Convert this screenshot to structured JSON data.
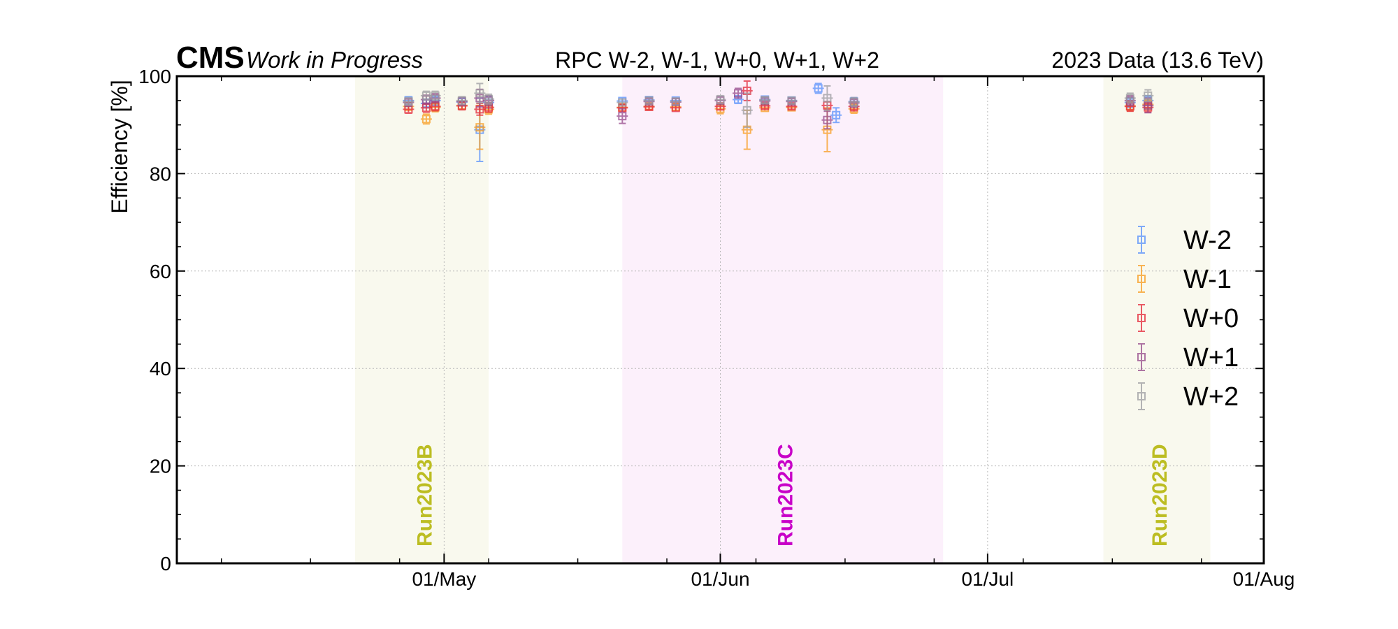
{
  "header": {
    "experiment": "CMS",
    "status": "Work in Progress",
    "lumi": "2023 Data (13.6 TeV)"
  },
  "chart_data": {
    "type": "scatter",
    "title": "RPC W-2, W-1, W+0, W+1, W+2",
    "xlabel": "",
    "ylabel": "Efficiency [%]",
    "x_start": "2023-04-01",
    "x_end": "2023-08-01",
    "xlim": [
      "2023-04-01",
      "2023-08-01"
    ],
    "ylim": [
      0,
      100
    ],
    "yticks": [
      0,
      20,
      40,
      60,
      80,
      100
    ],
    "xticks": [
      {
        "date": "2023-05-01",
        "label": "01/May"
      },
      {
        "date": "2023-06-01",
        "label": "01/Jun"
      },
      {
        "date": "2023-07-01",
        "label": "01/Jul"
      },
      {
        "date": "2023-08-01",
        "label": "01/Aug"
      }
    ],
    "grid": true,
    "legend_position": "center-right",
    "runs": [
      {
        "name": "Run2023B",
        "start": "2023-04-21",
        "end": "2023-05-06",
        "color": "#bcbd22",
        "fill": "#f9f9ee"
      },
      {
        "name": "Run2023C",
        "start": "2023-05-21",
        "end": "2023-06-26",
        "color": "#c800c8",
        "fill": "#fcf0fb"
      },
      {
        "name": "Run2023D",
        "start": "2023-07-14",
        "end": "2023-07-26",
        "color": "#bcbd22",
        "fill": "#f9f9ee"
      }
    ],
    "series": [
      {
        "name": "W-2",
        "color": "#5790fc",
        "points": [
          {
            "x": "2023-04-27",
            "y": 95.0,
            "err": 0.8
          },
          {
            "x": "2023-04-29",
            "y": 94.4,
            "err": 0.9
          },
          {
            "x": "2023-04-30",
            "y": 95.0,
            "err": 1.0
          },
          {
            "x": "2023-05-03",
            "y": 94.7,
            "err": 0.8
          },
          {
            "x": "2023-05-05",
            "y": 89.0,
            "err": 6.5
          },
          {
            "x": "2023-05-06",
            "y": 94.6,
            "err": 1.2
          },
          {
            "x": "2023-05-21",
            "y": 94.9,
            "err": 0.7
          },
          {
            "x": "2023-05-24",
            "y": 95.1,
            "err": 0.6
          },
          {
            "x": "2023-05-27",
            "y": 95.0,
            "err": 0.7
          },
          {
            "x": "2023-06-03",
            "y": 95.2,
            "err": 0.8
          },
          {
            "x": "2023-06-06",
            "y": 95.2,
            "err": 0.7
          },
          {
            "x": "2023-06-09",
            "y": 95.0,
            "err": 0.7
          },
          {
            "x": "2023-06-12",
            "y": 97.5,
            "err": 1.0
          },
          {
            "x": "2023-06-14",
            "y": 92.0,
            "err": 1.5
          },
          {
            "x": "2023-06-16",
            "y": 94.8,
            "err": 0.8
          },
          {
            "x": "2023-07-17",
            "y": 94.6,
            "err": 1.0
          },
          {
            "x": "2023-07-19",
            "y": 95.0,
            "err": 1.0
          }
        ]
      },
      {
        "name": "W-1",
        "color": "#f89c20",
        "points": [
          {
            "x": "2023-04-27",
            "y": 93.8,
            "err": 0.8
          },
          {
            "x": "2023-04-29",
            "y": 91.2,
            "err": 1.0
          },
          {
            "x": "2023-04-30",
            "y": 93.6,
            "err": 0.9
          },
          {
            "x": "2023-05-03",
            "y": 94.0,
            "err": 0.8
          },
          {
            "x": "2023-05-05",
            "y": 89.5,
            "err": 4.5
          },
          {
            "x": "2023-05-06",
            "y": 93.2,
            "err": 1.0
          },
          {
            "x": "2023-05-21",
            "y": 93.6,
            "err": 0.7
          },
          {
            "x": "2023-05-24",
            "y": 93.8,
            "err": 0.6
          },
          {
            "x": "2023-05-27",
            "y": 93.7,
            "err": 0.7
          },
          {
            "x": "2023-06-01",
            "y": 93.3,
            "err": 1.0
          },
          {
            "x": "2023-06-04",
            "y": 89.0,
            "err": 4.0
          },
          {
            "x": "2023-06-06",
            "y": 93.5,
            "err": 0.7
          },
          {
            "x": "2023-06-09",
            "y": 93.6,
            "err": 0.7
          },
          {
            "x": "2023-06-13",
            "y": 89.0,
            "err": 4.5
          },
          {
            "x": "2023-06-16",
            "y": 93.3,
            "err": 0.9
          },
          {
            "x": "2023-07-17",
            "y": 93.9,
            "err": 1.0
          },
          {
            "x": "2023-07-19",
            "y": 94.2,
            "err": 1.0
          }
        ]
      },
      {
        "name": "W+0",
        "color": "#e42536",
        "points": [
          {
            "x": "2023-04-27",
            "y": 93.2,
            "err": 0.8
          },
          {
            "x": "2023-04-29",
            "y": 93.5,
            "err": 0.9
          },
          {
            "x": "2023-04-30",
            "y": 93.8,
            "err": 0.9
          },
          {
            "x": "2023-05-03",
            "y": 93.9,
            "err": 0.8
          },
          {
            "x": "2023-05-05",
            "y": 93.2,
            "err": 1.2
          },
          {
            "x": "2023-05-06",
            "y": 93.6,
            "err": 1.0
          },
          {
            "x": "2023-05-21",
            "y": 93.5,
            "err": 0.7
          },
          {
            "x": "2023-05-24",
            "y": 93.7,
            "err": 0.6
          },
          {
            "x": "2023-05-27",
            "y": 93.5,
            "err": 0.7
          },
          {
            "x": "2023-06-01",
            "y": 93.8,
            "err": 0.7
          },
          {
            "x": "2023-06-04",
            "y": 97.0,
            "err": 2.0
          },
          {
            "x": "2023-06-06",
            "y": 93.9,
            "err": 0.6
          },
          {
            "x": "2023-06-09",
            "y": 93.8,
            "err": 0.6
          },
          {
            "x": "2023-06-13",
            "y": 94.0,
            "err": 0.8
          },
          {
            "x": "2023-06-16",
            "y": 93.8,
            "err": 0.9
          },
          {
            "x": "2023-07-17",
            "y": 93.8,
            "err": 1.0
          },
          {
            "x": "2023-07-19",
            "y": 93.6,
            "err": 1.0
          }
        ]
      },
      {
        "name": "W+1",
        "color": "#964a8b",
        "points": [
          {
            "x": "2023-04-27",
            "y": 94.6,
            "err": 0.8
          },
          {
            "x": "2023-04-29",
            "y": 95.2,
            "err": 0.9
          },
          {
            "x": "2023-04-30",
            "y": 95.5,
            "err": 0.9
          },
          {
            "x": "2023-05-03",
            "y": 94.8,
            "err": 0.8
          },
          {
            "x": "2023-05-05",
            "y": 95.5,
            "err": 1.8
          },
          {
            "x": "2023-05-06",
            "y": 95.0,
            "err": 1.0
          },
          {
            "x": "2023-05-21",
            "y": 91.8,
            "err": 1.5
          },
          {
            "x": "2023-05-24",
            "y": 94.8,
            "err": 0.6
          },
          {
            "x": "2023-05-27",
            "y": 94.7,
            "err": 0.7
          },
          {
            "x": "2023-06-01",
            "y": 95.0,
            "err": 0.8
          },
          {
            "x": "2023-06-03",
            "y": 96.5,
            "err": 1.0
          },
          {
            "x": "2023-06-06",
            "y": 94.9,
            "err": 0.6
          },
          {
            "x": "2023-06-09",
            "y": 94.8,
            "err": 0.6
          },
          {
            "x": "2023-06-13",
            "y": 91.0,
            "err": 1.8
          },
          {
            "x": "2023-06-16",
            "y": 94.5,
            "err": 0.9
          },
          {
            "x": "2023-07-17",
            "y": 95.0,
            "err": 1.0
          },
          {
            "x": "2023-07-19",
            "y": 94.0,
            "err": 1.5
          }
        ]
      },
      {
        "name": "W+2",
        "color": "#9c9ca1",
        "points": [
          {
            "x": "2023-04-27",
            "y": 94.8,
            "err": 0.8
          },
          {
            "x": "2023-04-29",
            "y": 96.0,
            "err": 0.9
          },
          {
            "x": "2023-04-30",
            "y": 96.0,
            "err": 0.9
          },
          {
            "x": "2023-05-03",
            "y": 95.0,
            "err": 0.8
          },
          {
            "x": "2023-05-05",
            "y": 96.5,
            "err": 2.0
          },
          {
            "x": "2023-05-06",
            "y": 95.3,
            "err": 1.0
          },
          {
            "x": "2023-05-21",
            "y": 94.6,
            "err": 0.7
          },
          {
            "x": "2023-05-24",
            "y": 95.0,
            "err": 0.6
          },
          {
            "x": "2023-05-27",
            "y": 94.8,
            "err": 0.7
          },
          {
            "x": "2023-06-01",
            "y": 95.2,
            "err": 0.8
          },
          {
            "x": "2023-06-04",
            "y": 93.0,
            "err": 3.5
          },
          {
            "x": "2023-06-06",
            "y": 95.1,
            "err": 0.6
          },
          {
            "x": "2023-06-09",
            "y": 95.0,
            "err": 0.6
          },
          {
            "x": "2023-06-13",
            "y": 95.5,
            "err": 2.5
          },
          {
            "x": "2023-06-16",
            "y": 94.7,
            "err": 0.9
          },
          {
            "x": "2023-07-17",
            "y": 95.5,
            "err": 1.0
          },
          {
            "x": "2023-07-19",
            "y": 96.0,
            "err": 1.2
          }
        ]
      }
    ]
  }
}
